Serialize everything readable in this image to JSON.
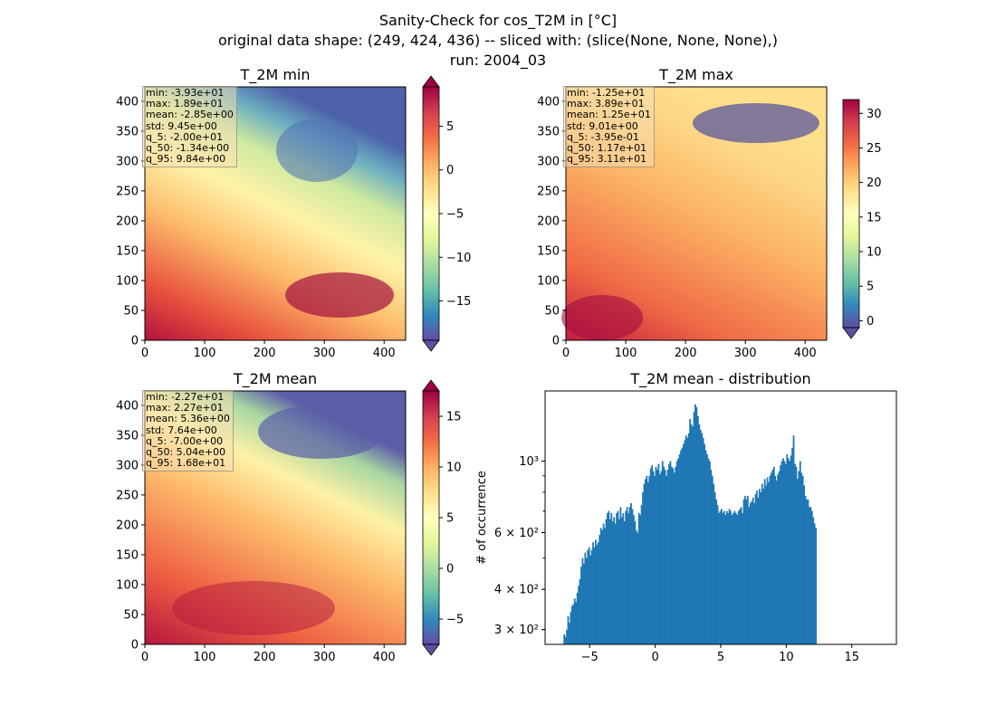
{
  "figure": {
    "title_lines": [
      "Sanity-Check for cos_T2M in [°C]",
      "original data shape: (249, 424, 436) -- sliced with: (slice(None, None, None),)",
      "run: 2004_03"
    ]
  },
  "chart_data": [
    {
      "type": "heatmap",
      "title": "T_2M min",
      "xlim": [
        0,
        436
      ],
      "ylim": [
        0,
        424
      ],
      "xticks": [
        "0",
        "100",
        "200",
        "300",
        "400"
      ],
      "yticks": [
        "0",
        "50",
        "100",
        "150",
        "200",
        "250",
        "300",
        "350",
        "400"
      ],
      "colormap": "Spectral_r",
      "colorbar": {
        "vmin": -19.5,
        "vmax": 9.5,
        "extend": "both",
        "ticks": [
          "5",
          "0",
          "−5",
          "−10",
          "−15"
        ],
        "tick_values": [
          5,
          0,
          -5,
          -10,
          -15
        ]
      },
      "stats": [
        "min: -3.93e+01",
        "max: 1.89e+01",
        "mean: -2.85e+00",
        "std: 9.45e+00",
        "q_5: -2.00e+01",
        "q_50: -1.34e+00",
        "q_95: 9.84e+00"
      ]
    },
    {
      "type": "heatmap",
      "title": "T_2M max",
      "xlim": [
        0,
        436
      ],
      "ylim": [
        0,
        424
      ],
      "xticks": [
        "0",
        "100",
        "200",
        "300",
        "400"
      ],
      "yticks": [
        "0",
        "50",
        "100",
        "150",
        "200",
        "250",
        "300",
        "350",
        "400"
      ],
      "colormap": "Spectral_r",
      "colorbar": {
        "vmin": -1,
        "vmax": 32,
        "extend": "min",
        "ticks": [
          "30",
          "25",
          "20",
          "15",
          "10",
          "5",
          "0"
        ],
        "tick_values": [
          30,
          25,
          20,
          15,
          10,
          5,
          0
        ]
      },
      "stats": [
        "min: -1.25e+01",
        "max: 3.89e+01",
        "mean: 1.25e+01",
        "std: 9.01e+00",
        "q_5: -3.95e-01",
        "q_50: 1.17e+01",
        "q_95: 3.11e+01"
      ]
    },
    {
      "type": "heatmap",
      "title": "T_2M mean",
      "xlim": [
        0,
        436
      ],
      "ylim": [
        0,
        424
      ],
      "xticks": [
        "0",
        "100",
        "200",
        "300",
        "400"
      ],
      "yticks": [
        "0",
        "50",
        "100",
        "150",
        "200",
        "250",
        "300",
        "350",
        "400"
      ],
      "colormap": "Spectral_r",
      "colorbar": {
        "vmin": -7.5,
        "vmax": 17.5,
        "extend": "both",
        "ticks": [
          "15",
          "10",
          "5",
          "0",
          "−5"
        ],
        "tick_values": [
          15,
          10,
          5,
          0,
          -5
        ]
      },
      "stats": [
        "min: -2.27e+01",
        "max: 2.27e+01",
        "mean: 5.36e+00",
        "std: 7.64e+00",
        "q_5: -7.00e+00",
        "q_50: 5.04e+00",
        "q_95: 1.68e+01"
      ]
    },
    {
      "type": "bar",
      "title": "T_2M mean - distribution",
      "xlabel": "",
      "ylabel": "# of occurrence",
      "yscale": "log",
      "xlim": [
        -8.4,
        18.4
      ],
      "ylim": [
        270,
        1650
      ],
      "xticks": [
        "−5",
        "0",
        "5",
        "10",
        "15"
      ],
      "xtick_values": [
        -5,
        0,
        5,
        10,
        15
      ],
      "yticks": [
        "3 × 10²",
        "4 × 10²",
        "6 × 10²",
        "10³"
      ],
      "ytick_values": [
        300,
        400,
        600,
        1000
      ],
      "bar_color": "#1f77b4",
      "bin_start": -7.0,
      "bin_width": 0.1,
      "values": [
        290,
        285,
        300,
        330,
        315,
        340,
        355,
        360,
        375,
        365,
        390,
        410,
        430,
        470,
        500,
        480,
        520,
        500,
        530,
        540,
        510,
        530,
        560,
        540,
        570,
        550,
        560,
        590,
        620,
        610,
        640,
        620,
        660,
        690,
        700,
        660,
        690,
        650,
        670,
        640,
        690,
        700,
        660,
        720,
        670,
        690,
        650,
        700,
        720,
        690,
        720,
        740,
        710,
        680,
        650,
        610,
        600,
        690,
        680,
        730,
        800,
        850,
        880,
        900,
        860,
        900,
        950,
        970,
        930,
        900,
        960,
        940,
        980,
        910,
        930,
        1000,
        960,
        940,
        900,
        940,
        980,
        1000,
        960,
        950,
        920,
        960,
        1000,
        1020,
        1050,
        1080,
        1100,
        1130,
        1160,
        1200,
        1180,
        1220,
        1350,
        1300,
        1280,
        1420,
        1500,
        1470,
        1380,
        1300,
        1250,
        1220,
        1180,
        1130,
        1080,
        1050,
        1020,
        1000,
        940,
        900,
        850,
        800,
        760,
        730,
        690,
        700,
        710,
        690,
        700,
        680,
        700,
        690,
        710,
        700,
        680,
        690,
        700,
        690,
        680,
        700,
        710,
        720,
        690,
        760,
        780,
        760,
        780,
        720,
        740,
        750,
        770,
        740,
        790,
        810,
        770,
        820,
        800,
        850,
        820,
        880,
        840,
        890,
        860,
        900,
        920,
        940,
        960,
        900,
        870,
        910,
        930,
        970,
        1000,
        1020,
        1000,
        980,
        1050,
        1020,
        1000,
        1040,
        1100,
        1200,
        980,
        960,
        880,
        930,
        1000,
        920,
        900,
        840,
        780,
        760,
        760,
        720,
        720,
        700,
        670,
        640,
        620
      ]
    }
  ]
}
